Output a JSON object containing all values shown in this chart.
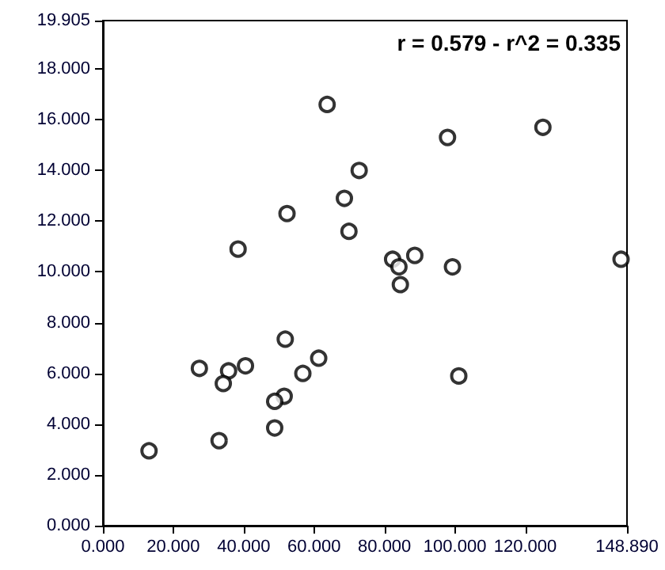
{
  "chart_data": {
    "type": "scatter",
    "annotations": [
      "r = 0.579 - r^2 = 0.335"
    ],
    "x": [
      63.7,
      125.0,
      97.9,
      72.8,
      68.6,
      52.3,
      69.9,
      38.4,
      82.3,
      88.6,
      84.1,
      99.3,
      147.2,
      84.5,
      51.8,
      61.3,
      27.4,
      35.7,
      40.5,
      56.8,
      34.2,
      101.1,
      51.5,
      48.8,
      48.8,
      33.0,
      13.1
    ],
    "series": [
      {
        "color": "#000000",
        "values": [
          16.6,
          15.7,
          15.3,
          14.0,
          12.9,
          12.3,
          11.6,
          10.9,
          10.5,
          10.65,
          10.2,
          10.2,
          10.5,
          9.5,
          7.35,
          6.6,
          6.2,
          6.1,
          6.3,
          6.0,
          5.6,
          5.9,
          5.1,
          4.9,
          3.85,
          3.35,
          2.95
        ]
      }
    ],
    "xlim": [
      0,
      148.89
    ],
    "xticks": [
      {
        "value": 0,
        "label": "0.000"
      },
      {
        "value": 20,
        "label": "20.000"
      },
      {
        "value": 40,
        "label": "40.000"
      },
      {
        "value": 60,
        "label": "60.000"
      },
      {
        "value": 80,
        "label": "80.000"
      },
      {
        "value": 100,
        "label": "100.000"
      },
      {
        "value": 120,
        "label": "120.000"
      },
      {
        "value": 148.89,
        "label": "148.890"
      }
    ],
    "ylim": [
      0,
      19.905
    ],
    "yticks": [
      {
        "value": 0,
        "label": "0.000"
      },
      {
        "value": 2,
        "label": "2.000"
      },
      {
        "value": 4,
        "label": "4.000"
      },
      {
        "value": 6,
        "label": "6.000"
      },
      {
        "value": 8,
        "label": "8.000"
      },
      {
        "value": 10,
        "label": "10.000"
      },
      {
        "value": 12,
        "label": "12.000"
      },
      {
        "value": 14,
        "label": "14.000"
      },
      {
        "value": 16,
        "label": "16.000"
      },
      {
        "value": 18,
        "label": "18.000"
      },
      {
        "value": 19.905,
        "label": "19.905"
      }
    ],
    "grid": false,
    "marker": "circle"
  }
}
